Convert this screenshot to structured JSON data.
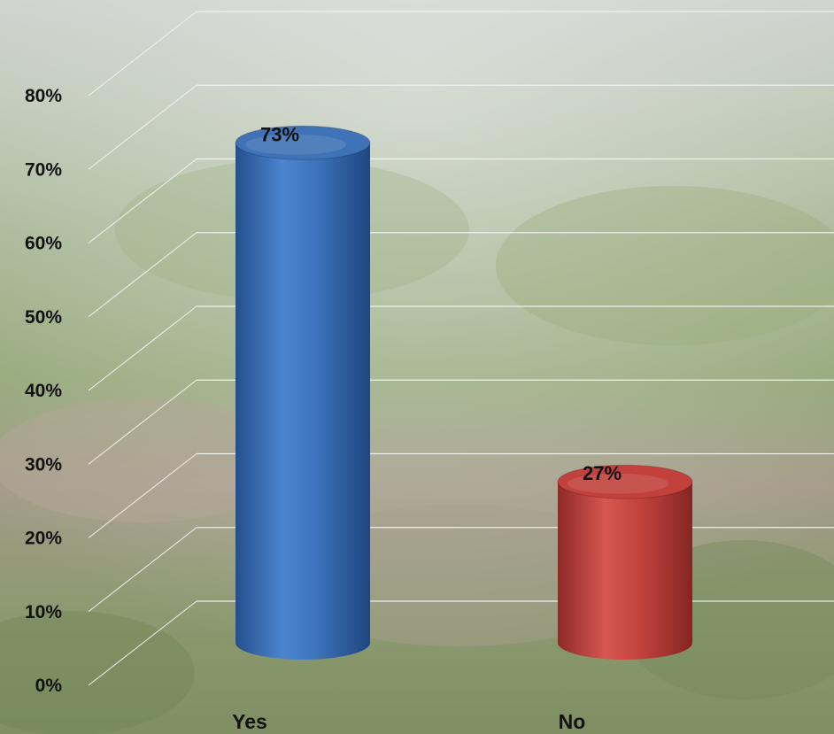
{
  "chart_data": {
    "type": "bar",
    "style": "3d-cylinder",
    "categories": [
      "Yes",
      "No"
    ],
    "values": [
      73,
      27
    ],
    "data_labels": [
      "73%",
      "27%"
    ],
    "bar_colors": [
      "#3f72b6",
      "#c2413d"
    ],
    "y_ticks": [
      "0%",
      "10%",
      "20%",
      "30%",
      "40%",
      "50%",
      "60%",
      "70%",
      "80%"
    ],
    "ylim": [
      0,
      80
    ],
    "grid": true,
    "legend": "none",
    "title": "",
    "xlabel": "",
    "ylabel": ""
  }
}
